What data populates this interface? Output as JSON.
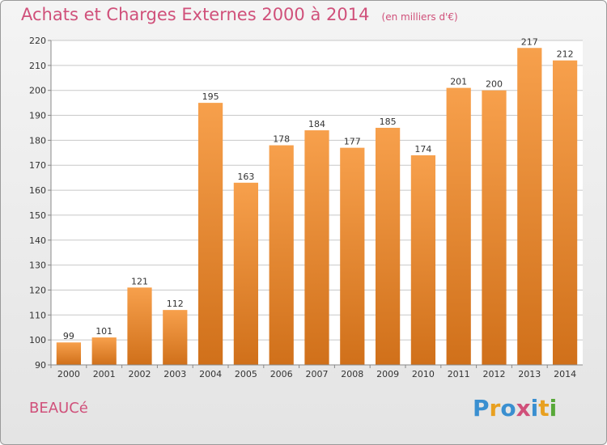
{
  "title": "Achats et Charges Externes 2000 à 2014",
  "unit_note": "(en milliers d'€)",
  "commune": "BEAUCé",
  "logo": {
    "text": "Proxiti",
    "letters": [
      {
        "ch": "P",
        "color": "#3a8fd0"
      },
      {
        "ch": "r",
        "color": "#e8a020"
      },
      {
        "ch": "o",
        "color": "#3a8fd0"
      },
      {
        "ch": "x",
        "color": "#d0507a"
      },
      {
        "ch": "i",
        "color": "#3a8fd0"
      },
      {
        "ch": "t",
        "color": "#e8a020"
      },
      {
        "ch": "i",
        "color": "#58a838"
      }
    ]
  },
  "colors": {
    "bar_top": "#f7a04c",
    "bar_bottom": "#d0701a",
    "title": "#d0507a",
    "grid": "#c8c8c8",
    "axis": "#888888"
  },
  "chart_data": {
    "type": "bar",
    "categories": [
      "2000",
      "2001",
      "2002",
      "2003",
      "2004",
      "2005",
      "2006",
      "2007",
      "2008",
      "2009",
      "2010",
      "2011",
      "2012",
      "2013",
      "2014"
    ],
    "values": [
      99,
      101,
      121,
      112,
      195,
      163,
      178,
      184,
      177,
      185,
      174,
      201,
      200,
      217,
      212
    ],
    "ylim": [
      90,
      220
    ],
    "yticks": [
      90,
      100,
      110,
      120,
      130,
      140,
      150,
      160,
      170,
      180,
      190,
      200,
      210,
      220
    ],
    "grid": true,
    "data_labels": true
  }
}
